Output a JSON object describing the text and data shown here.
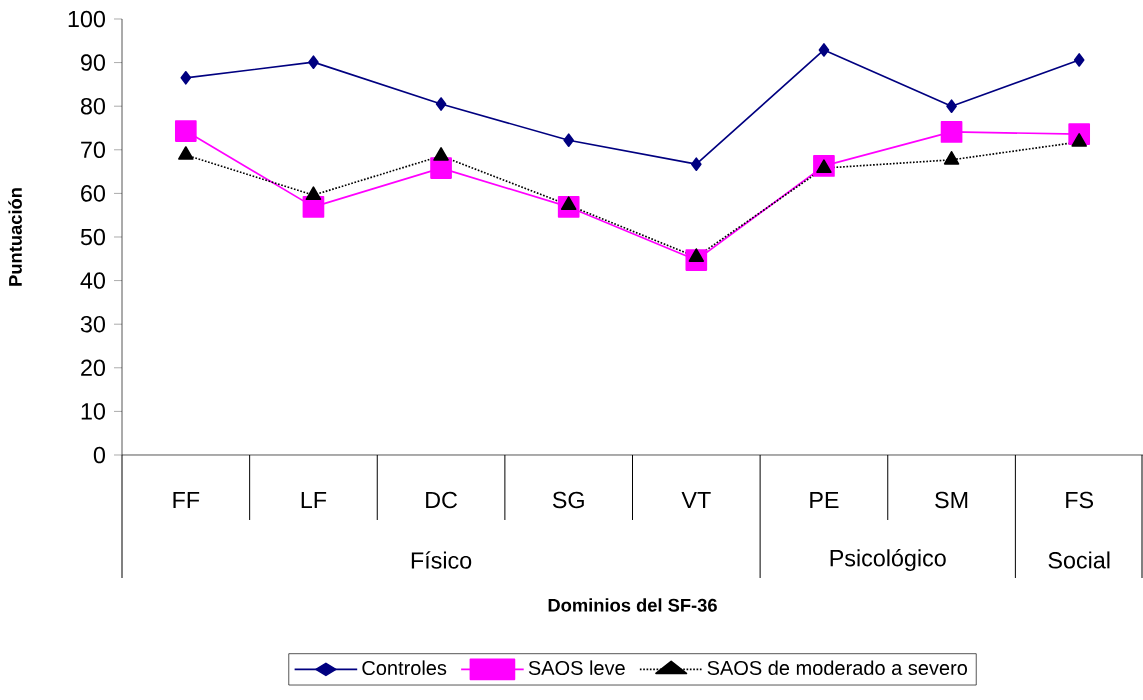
{
  "chart_data": {
    "type": "line",
    "xlabel": "Dominios del SF-36",
    "ylabel": "Puntuación",
    "categories": [
      "FF",
      "LF",
      "DC",
      "SG",
      "VT",
      "PE",
      "SM",
      "FS"
    ],
    "series": [
      {
        "name": "Controles",
        "color": "#000080",
        "marker": "diamond",
        "line_style": "solid",
        "values": [
          86.5,
          90.1,
          80.5,
          72.2,
          66.7,
          92.9,
          80.0,
          90.6
        ]
      },
      {
        "name": "SAOS leve",
        "color": "#ff00ff",
        "marker": "square",
        "line_style": "solid",
        "values": [
          74.3,
          56.9,
          65.8,
          56.9,
          44.7,
          66.3,
          74.1,
          73.6
        ]
      },
      {
        "name": "SAOS de moderado a severo",
        "color": "#000000",
        "marker": "triangle",
        "line_style": "dotted",
        "values": [
          68.8,
          59.6,
          68.6,
          57.3,
          45.4,
          65.8,
          67.7,
          71.8
        ]
      }
    ],
    "annotations": [
      "Físico",
      "Psicológico",
      "Social"
    ],
    "ylim": [
      0,
      100
    ],
    "yticks": [
      0,
      10,
      20,
      30,
      40,
      50,
      60,
      70,
      80,
      90,
      100
    ],
    "grid": false,
    "legend": "bottom"
  }
}
